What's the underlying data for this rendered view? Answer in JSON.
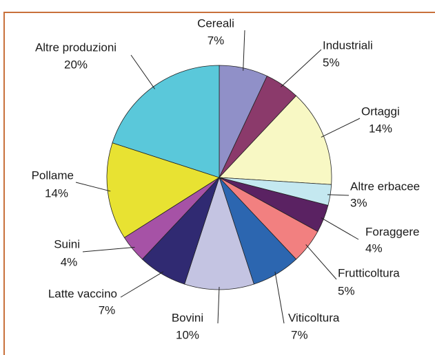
{
  "chart_data": {
    "type": "pie",
    "categories": [
      "Cereali",
      "Industriali",
      "Ortaggi",
      "Altre erbacee",
      "Foraggere",
      "Frutticoltura",
      "Viticoltura",
      "Bovini",
      "Latte vaccino",
      "Suini",
      "Pollame",
      "Altre produzioni"
    ],
    "values": [
      7,
      5,
      14,
      3,
      4,
      5,
      7,
      10,
      7,
      4,
      14,
      20
    ],
    "value_labels": [
      "7%",
      "5%",
      "14%",
      "3%",
      "4%",
      "5%",
      "7%",
      "10%",
      "7%",
      "4%",
      "14%",
      "20%"
    ],
    "colors": [
      "#9090c8",
      "#8b3a6b",
      "#f8f8c4",
      "#c4e8f0",
      "#5a2262",
      "#f28080",
      "#2c66b0",
      "#c4c4e2",
      "#302a72",
      "#a652a6",
      "#e8e232",
      "#5ac8da"
    ]
  }
}
